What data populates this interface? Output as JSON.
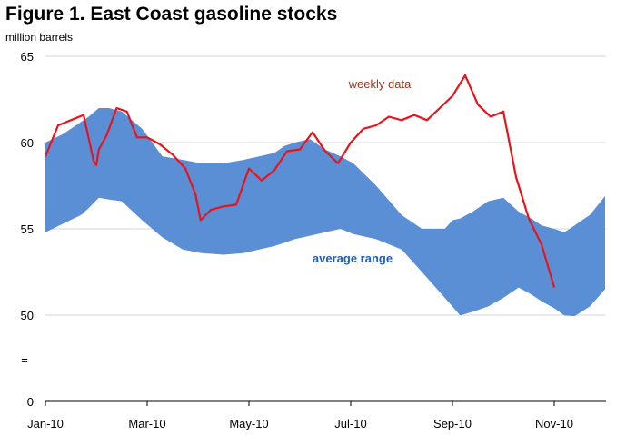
{
  "chart_data": {
    "type": "area",
    "title": "Figure 1. East Coast gasoline stocks",
    "ylabel": "million barrels",
    "ylim": [
      0,
      65
    ],
    "axis_break_marker": "=",
    "y_ticks": [
      "65",
      "60",
      "55",
      "50",
      "0"
    ],
    "x_ticks": [
      {
        "label": "Jan-10",
        "month": 0
      },
      {
        "label": "Mar-10",
        "month": 2
      },
      {
        "label": "May-10",
        "month": 4
      },
      {
        "label": "Jul-10",
        "month": 6
      },
      {
        "label": "Sep-10",
        "month": 8
      },
      {
        "label": "Nov-10",
        "month": 10
      }
    ],
    "x_range_months": [
      0,
      11
    ],
    "series": [
      {
        "name": "average range",
        "kind": "band",
        "color": "#5a8fd6",
        "label_color": "#1f5fb8",
        "month": [
          0.0,
          0.35,
          0.7,
          0.85,
          1.05,
          1.25,
          1.5,
          1.9,
          2.3,
          2.7,
          3.05,
          3.5,
          3.9,
          4.2,
          4.5,
          4.7,
          4.9,
          5.2,
          5.5,
          5.8,
          6.05,
          6.5,
          7.0,
          7.4,
          7.85,
          8.0,
          8.15,
          8.4,
          8.7,
          9.0,
          9.3,
          9.55,
          9.75,
          10.0,
          10.2,
          10.4,
          10.7,
          11.0
        ],
        "upper": [
          60.0,
          60.5,
          61.2,
          61.5,
          62.0,
          62.0,
          61.8,
          60.8,
          59.2,
          59.0,
          58.8,
          58.8,
          59.0,
          59.2,
          59.4,
          59.8,
          60.0,
          60.2,
          59.6,
          59.2,
          58.8,
          57.5,
          55.8,
          55.0,
          55.0,
          55.5,
          55.6,
          56.0,
          56.6,
          56.8,
          56.0,
          55.6,
          55.2,
          55.0,
          54.8,
          55.2,
          55.8,
          56.9
        ],
        "lower": [
          54.8,
          55.3,
          55.8,
          56.2,
          56.8,
          56.7,
          56.6,
          55.5,
          54.5,
          53.8,
          53.6,
          53.5,
          53.6,
          53.8,
          54.0,
          54.2,
          54.4,
          54.6,
          54.8,
          55.0,
          54.7,
          54.4,
          53.8,
          52.5,
          51.0,
          50.5,
          49.8,
          50.2,
          50.5,
          51.0,
          51.6,
          51.2,
          50.8,
          50.4,
          49.8,
          49.4,
          50.5,
          51.5
        ]
      },
      {
        "name": "weekly data",
        "kind": "line",
        "color": "#e8141c",
        "label_color": "#a0361c",
        "month": [
          0.0,
          0.25,
          0.5,
          0.75,
          0.95,
          1.0,
          1.05,
          1.2,
          1.4,
          1.6,
          1.8,
          2.0,
          2.25,
          2.5,
          2.75,
          2.95,
          3.05,
          3.25,
          3.5,
          3.75,
          4.0,
          4.25,
          4.5,
          4.75,
          5.0,
          5.25,
          5.5,
          5.75,
          6.0,
          6.25,
          6.5,
          6.75,
          7.0,
          7.25,
          7.5,
          7.75,
          8.0,
          8.25,
          8.5,
          8.75,
          9.0,
          9.25,
          9.5,
          9.75,
          10.0
        ],
        "values": [
          59.2,
          61.0,
          61.3,
          61.6,
          58.9,
          58.7,
          59.6,
          60.4,
          62.0,
          61.8,
          60.3,
          60.3,
          59.9,
          59.3,
          58.5,
          57.0,
          55.5,
          56.1,
          56.3,
          56.4,
          58.5,
          57.8,
          58.4,
          59.5,
          59.6,
          60.6,
          59.5,
          58.8,
          60.0,
          60.8,
          61.0,
          61.5,
          61.3,
          61.6,
          61.3,
          62.0,
          62.7,
          63.9,
          62.2,
          61.5,
          61.8,
          58.0,
          55.6,
          54.1,
          51.6
        ]
      }
    ]
  }
}
